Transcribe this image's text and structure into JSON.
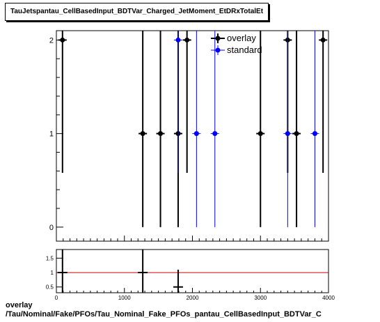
{
  "title": "TauJetspantau_CellBasedInput_BDTVar_Charged_JetMoment_EtDRxTotalEt",
  "footer": {
    "line1": "overlay",
    "line2": "/Tau/Nominal/Fake/PFOs/Tau_Nominal_Fake_PFOs_pantau_CellBasedInput_BDTVar_C"
  },
  "colors": {
    "overlay": "#000000",
    "standard": "#0000ff",
    "ratio_line": "#cc0000"
  },
  "chart_data": [
    {
      "type": "scatter",
      "ylim": [
        -0.15,
        2.1
      ],
      "y_ticks": [
        0,
        1,
        2
      ],
      "legend_position": "top-right",
      "series": [
        {
          "name": "overlay",
          "points": [
            {
              "x": 90,
              "y": 2,
              "ylo": 0.58,
              "yhi": 2.1
            },
            {
              "x": 1270,
              "y": 1,
              "ylo": 0,
              "yhi": 2.1
            },
            {
              "x": 1530,
              "y": 1,
              "ylo": 0,
              "yhi": 2.1
            },
            {
              "x": 1790,
              "y": 1,
              "ylo": 0,
              "yhi": 2.1
            },
            {
              "x": 1920,
              "y": 2,
              "ylo": 0.58,
              "yhi": 2.1
            },
            {
              "x": 3000,
              "y": 1,
              "ylo": 0,
              "yhi": 2.1
            },
            {
              "x": 3400,
              "y": 2,
              "ylo": 0.58,
              "yhi": 2.1
            },
            {
              "x": 3530,
              "y": 1,
              "ylo": 0,
              "yhi": 2.1
            },
            {
              "x": 3920,
              "y": 2,
              "ylo": 0.58,
              "yhi": 2.1
            }
          ]
        },
        {
          "name": "standard",
          "points": [
            {
              "x": 1790,
              "y": 2,
              "ylo": 0.58,
              "yhi": 2.1
            },
            {
              "x": 2060,
              "y": 1,
              "ylo": 0,
              "yhi": 2.1
            },
            {
              "x": 2330,
              "y": 1,
              "ylo": 0,
              "yhi": 2.1
            },
            {
              "x": 3400,
              "y": 1,
              "ylo": 0,
              "yhi": 2.1
            },
            {
              "x": 3800,
              "y": 1,
              "ylo": 0,
              "yhi": 2.1
            }
          ]
        }
      ]
    },
    {
      "type": "scatter",
      "xlim": [
        0,
        4000
      ],
      "ylim": [
        0.3,
        1.8
      ],
      "x_ticks": [
        0,
        1000,
        2000,
        3000,
        4000
      ],
      "y_ticks": [
        0.5,
        1,
        1.5
      ],
      "reference_line": 1,
      "series": [
        {
          "name": "ratio",
          "points": [
            {
              "x": 90,
              "y": 1,
              "ylo": 0.3,
              "yhi": 1.8
            },
            {
              "x": 1270,
              "y": 1,
              "ylo": 0.3,
              "yhi": 1.8
            },
            {
              "x": 1790,
              "y": 0.5,
              "ylo": 0.3,
              "yhi": 1.1
            }
          ]
        }
      ]
    }
  ]
}
